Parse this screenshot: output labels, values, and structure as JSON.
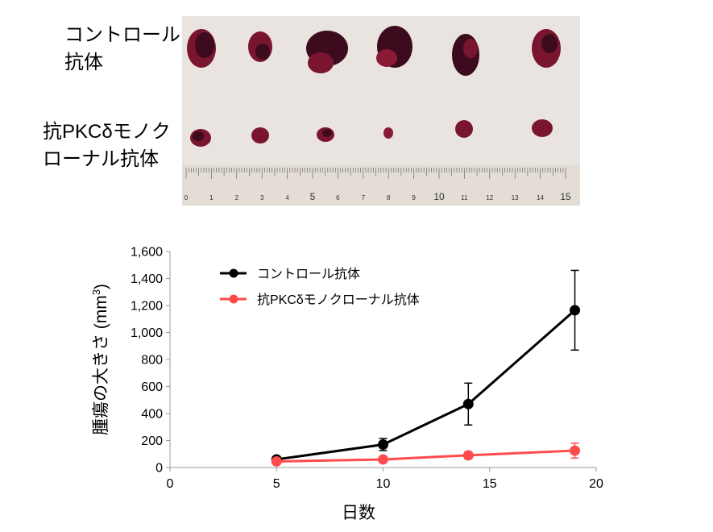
{
  "photo": {
    "row_labels": {
      "control_line1": "コントロール",
      "control_line2": "抗体",
      "antibody_line1": "抗PKCδモノク",
      "antibody_line2": "ローナル抗体"
    },
    "ruler_labels": [
      "0",
      "1",
      "2",
      "3",
      "4",
      "5",
      "6",
      "7",
      "8",
      "9",
      "10",
      "11",
      "12",
      "13",
      "14",
      "15"
    ],
    "colors": {
      "background": "#e9e4df",
      "tumor_dark": "#3d0b1e",
      "tumor_red": "#8a1a35"
    }
  },
  "chart_data": {
    "type": "line",
    "xlabel": "日数",
    "ylabel_main": "腫瘍の大きさ (mm",
    "ylabel_sup": "3",
    "ylabel_close": ")",
    "xlim": [
      0,
      20
    ],
    "ylim": [
      0,
      1600
    ],
    "xticks": [
      "0",
      "5",
      "10",
      "15",
      "20"
    ],
    "yticks": [
      "0",
      "200",
      "400",
      "600",
      "800",
      "1,000",
      "1,200",
      "1,400",
      "1,600"
    ],
    "grid": false,
    "legend_position": "top-left",
    "series": [
      {
        "name": "コントロール抗体",
        "color": "#000000",
        "x": [
          5,
          10,
          14,
          19
        ],
        "y": [
          60,
          170,
          470,
          1165
        ],
        "error": [
          0,
          45,
          155,
          295
        ]
      },
      {
        "name": "抗PKCδモノクローナル抗体",
        "color": "#ff4b4b",
        "x": [
          5,
          10,
          14,
          19
        ],
        "y": [
          45,
          60,
          90,
          125
        ],
        "error": [
          0,
          10,
          25,
          55
        ]
      }
    ]
  }
}
